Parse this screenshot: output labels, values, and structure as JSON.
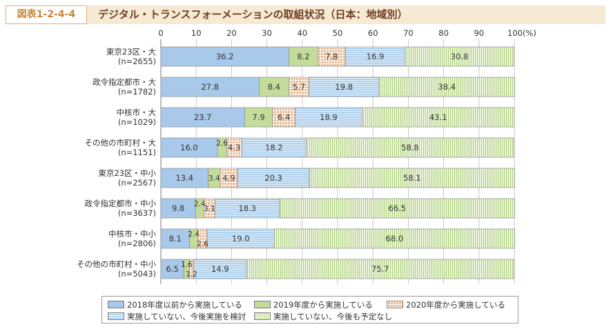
{
  "figure": {
    "label": "図表1-2-4-4",
    "title": "デジタル・トランスフォーメーションの取組状況（日本：地域別）"
  },
  "colors": {
    "header_bg": "#f6ead5",
    "label_text": "#c8853a",
    "title_text": "#6b3f1e",
    "s0": "#a9c9ea",
    "s1": "#c3dc9a",
    "s2": "#e8b890",
    "s3": "#dcecf8",
    "s4": "#edf5dd"
  },
  "chart_data": {
    "type": "bar",
    "orientation": "horizontal",
    "stacked": true,
    "xlim": [
      0,
      100
    ],
    "x_ticks": [
      "0",
      "10",
      "20",
      "30",
      "40",
      "50",
      "60",
      "70",
      "80",
      "90",
      "100(%)"
    ],
    "categories": [
      [
        "東京23区・大",
        "(n=2655)"
      ],
      [
        "政令指定都市・大",
        "(n=1782)"
      ],
      [
        "中核市・大",
        "(n=1029)"
      ],
      [
        "その他の市町村・大",
        "(n=1151)"
      ],
      [
        "東京23区・中小",
        "(n=2567)"
      ],
      [
        "政令指定都市・中小",
        "(n=3637)"
      ],
      [
        "中核市・中小",
        "(n=2806)"
      ],
      [
        "その他の市町村・中小",
        "(n=5043)"
      ]
    ],
    "series": [
      {
        "name": "2018年度以前から実施している",
        "values": [
          36.2,
          27.8,
          23.7,
          16.0,
          13.4,
          9.8,
          8.1,
          6.5
        ]
      },
      {
        "name": "2019年度から実施している",
        "values": [
          8.2,
          8.4,
          7.9,
          2.6,
          3.4,
          2.4,
          2.4,
          1.6
        ]
      },
      {
        "name": "2020年度から実施している",
        "values": [
          7.8,
          5.7,
          6.4,
          4.3,
          4.9,
          3.1,
          2.6,
          1.2
        ]
      },
      {
        "name": "実施していない、今後実施を検討",
        "values": [
          16.9,
          19.8,
          18.9,
          18.2,
          20.3,
          18.3,
          19.0,
          14.9
        ]
      },
      {
        "name": "実施していない、今後も予定なし",
        "values": [
          30.8,
          38.4,
          43.1,
          58.8,
          58.1,
          66.5,
          68.0,
          75.7
        ]
      }
    ],
    "grid": true,
    "legend_position": "bottom"
  }
}
